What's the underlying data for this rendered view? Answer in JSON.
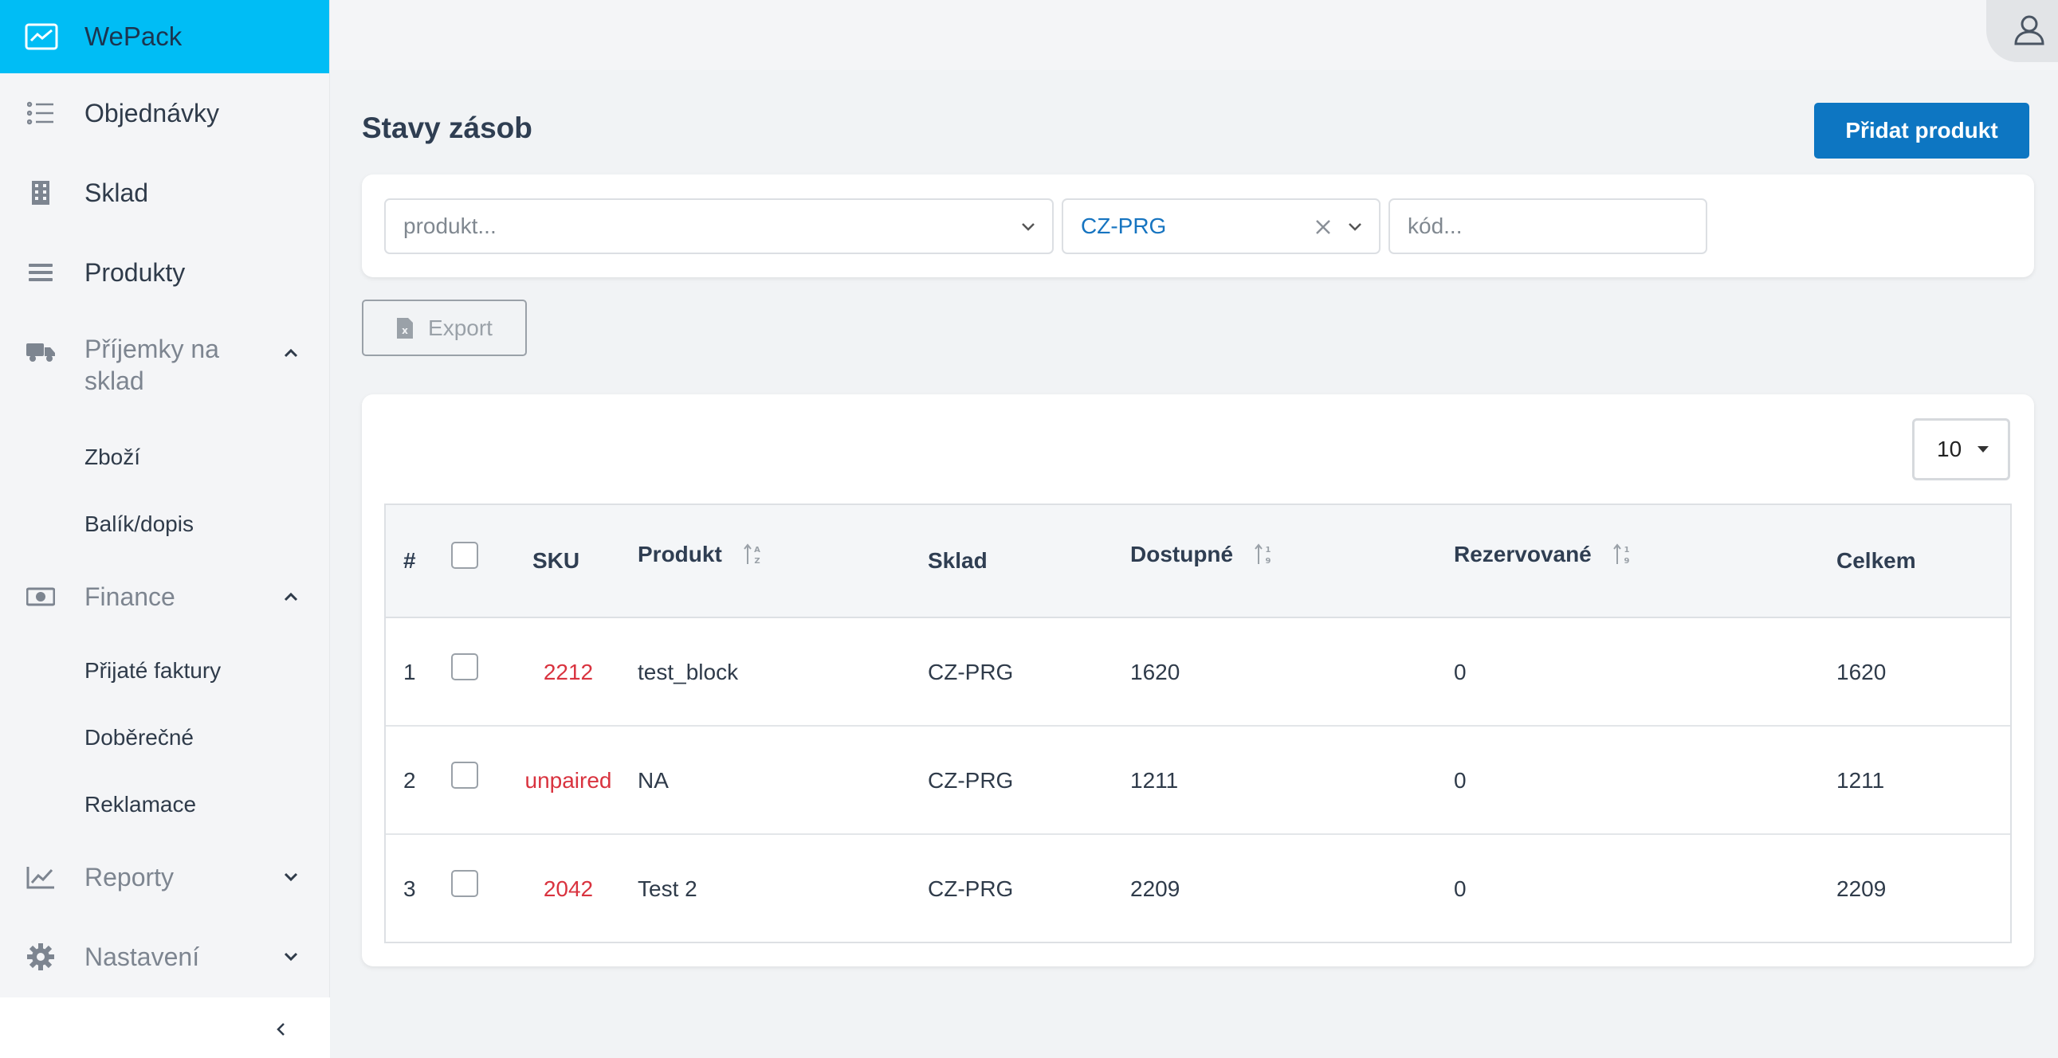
{
  "app": {
    "name": "WePack",
    "accent": "#00bdf5",
    "primary": "#0d76c2",
    "sku_color": "#d9333f"
  },
  "sidebar": {
    "items": [
      {
        "label": "Objednávky",
        "icon": "list-icon"
      },
      {
        "label": "Sklad",
        "icon": "building-icon"
      },
      {
        "label": "Produkty",
        "icon": "menu-icon"
      },
      {
        "label": "Příjemky na sklad",
        "label_line1": "Příjemky na",
        "label_line2": "sklad",
        "icon": "truck-icon",
        "expanded": true,
        "children": [
          "Zboží",
          "Balík/dopis"
        ]
      },
      {
        "label": "Finance",
        "icon": "money-icon",
        "expanded": true,
        "children": [
          "Přijaté faktury",
          "Doběrečné",
          "Reklamace"
        ]
      },
      {
        "label": "Reporty",
        "icon": "chart-line-icon",
        "expanded": false
      },
      {
        "label": "Nastavení",
        "icon": "gear-icon",
        "expanded": false
      }
    ]
  },
  "header": {
    "user_icon": "user-icon"
  },
  "main": {
    "title": "Stavy zásob",
    "add_button": "Přidat produkt",
    "filters": {
      "product_placeholder": "produkt...",
      "warehouse_value": "CZ-PRG",
      "code_placeholder": "kód..."
    },
    "export_label": "Export",
    "page_size": "10",
    "table": {
      "columns": [
        "#",
        "SKU",
        "Produkt",
        "Sklad",
        "Dostupné",
        "Rezervované",
        "Celkem"
      ],
      "rows": [
        {
          "index": "1",
          "sku": "2212",
          "product": "test_block",
          "warehouse": "CZ-PRG",
          "available": "1620",
          "reserved": "0",
          "total": "1620"
        },
        {
          "index": "2",
          "sku": "unpaired",
          "product": "NA",
          "warehouse": "CZ-PRG",
          "available": "1211",
          "reserved": "0",
          "total": "1211"
        },
        {
          "index": "3",
          "sku": "2042",
          "product": "Test 2",
          "warehouse": "CZ-PRG",
          "available": "2209",
          "reserved": "0",
          "total": "2209"
        }
      ]
    }
  }
}
